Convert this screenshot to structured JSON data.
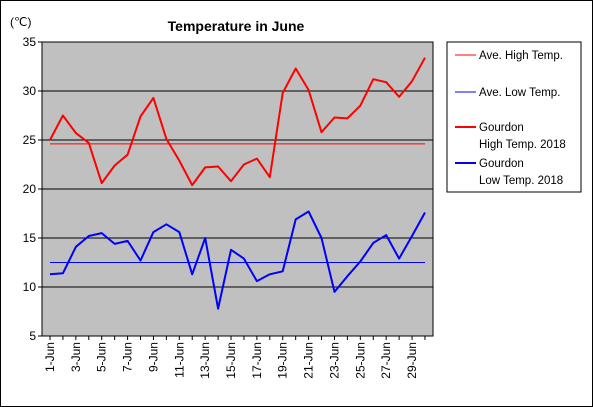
{
  "chart_data": {
    "type": "line",
    "title": "Temperature in June",
    "ylabel": "(℃)",
    "ylim": [
      5,
      35
    ],
    "yticks": [
      5,
      10,
      15,
      20,
      25,
      30,
      35
    ],
    "grid": true,
    "legend_position": "right",
    "x": [
      "1-Jun",
      "2-Jun",
      "3-Jun",
      "4-Jun",
      "5-Jun",
      "6-Jun",
      "7-Jun",
      "8-Jun",
      "9-Jun",
      "10-Jun",
      "11-Jun",
      "12-Jun",
      "13-Jun",
      "14-Jun",
      "15-Jun",
      "16-Jun",
      "17-Jun",
      "18-Jun",
      "19-Jun",
      "20-Jun",
      "21-Jun",
      "22-Jun",
      "23-Jun",
      "24-Jun",
      "25-Jun",
      "26-Jun",
      "27-Jun",
      "28-Jun",
      "29-Jun",
      "30-Jun"
    ],
    "xtick_labels": [
      "1-Jun",
      "3-Jun",
      "5-Jun",
      "7-Jun",
      "9-Jun",
      "11-Jun",
      "13-Jun",
      "15-Jun",
      "17-Jun",
      "19-Jun",
      "21-Jun",
      "23-Jun",
      "25-Jun",
      "27-Jun",
      "29-Jun"
    ],
    "series": [
      {
        "name": "Ave. High Temp.",
        "color": "#ff0000",
        "values": [
          24.6,
          24.6,
          24.6,
          24.6,
          24.6,
          24.6,
          24.6,
          24.6,
          24.6,
          24.6,
          24.6,
          24.6,
          24.6,
          24.6,
          24.6,
          24.6,
          24.6,
          24.6,
          24.6,
          24.6,
          24.6,
          24.6,
          24.6,
          24.6,
          24.6,
          24.6,
          24.6,
          24.6,
          24.6,
          24.6
        ]
      },
      {
        "name": "Ave. Low Temp.",
        "color": "#0000ff",
        "values": [
          12.5,
          12.5,
          12.5,
          12.5,
          12.5,
          12.5,
          12.5,
          12.5,
          12.5,
          12.5,
          12.5,
          12.5,
          12.5,
          12.5,
          12.5,
          12.5,
          12.5,
          12.5,
          12.5,
          12.5,
          12.5,
          12.5,
          12.5,
          12.5,
          12.5,
          12.5,
          12.5,
          12.5,
          12.5,
          12.5
        ]
      },
      {
        "name": "Gourdon High Temp. 2018",
        "legend_lines": [
          "Gourdon",
          "High Temp. 2018"
        ],
        "color": "#ff0000",
        "values": [
          25.0,
          27.5,
          25.7,
          24.7,
          20.6,
          22.4,
          23.5,
          27.4,
          29.3,
          25.1,
          22.9,
          20.4,
          22.2,
          22.3,
          20.8,
          22.5,
          23.1,
          21.2,
          29.8,
          32.3,
          30.1,
          25.8,
          27.3,
          27.2,
          28.5,
          31.2,
          30.9,
          29.4,
          31.0,
          33.4
        ]
      },
      {
        "name": "Gourdon Low Temp. 2018",
        "legend_lines": [
          "Gourdon",
          "Low Temp. 2018"
        ],
        "color": "#0000ff",
        "values": [
          11.3,
          11.4,
          14.1,
          15.2,
          15.5,
          14.4,
          14.7,
          12.7,
          15.6,
          16.4,
          15.6,
          11.3,
          15.0,
          7.8,
          13.8,
          12.9,
          10.6,
          11.3,
          11.6,
          16.9,
          17.7,
          15.0,
          9.5,
          11.1,
          12.6,
          14.5,
          15.3,
          12.9,
          15.2,
          17.6
        ]
      }
    ]
  }
}
